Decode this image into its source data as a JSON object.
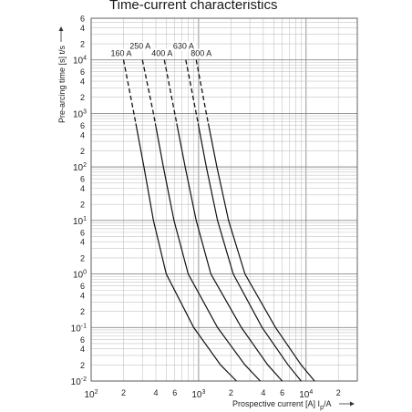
{
  "chart_data": {
    "type": "line",
    "title": "Time-current characteristics",
    "xlabel": "Prospective current [A]",
    "xlabel_symbol": "I",
    "xlabel_symbol_sub": "p",
    "xlabel_unit": "/A",
    "ylabel": "Pre-arcing time [s]",
    "ylabel_symbol": "t/s",
    "x_scale": "log",
    "y_scale": "log",
    "xlim": [
      100,
      30000
    ],
    "ylim": [
      0.01,
      60000
    ],
    "grid": true,
    "x_major_ticks": [
      {
        "value": 100,
        "base": "10",
        "exp": "2"
      },
      {
        "value": 1000,
        "base": "10",
        "exp": "3"
      },
      {
        "value": 10000,
        "base": "10",
        "exp": "4"
      }
    ],
    "x_minor_labels": [
      {
        "value": 200,
        "label": "2"
      },
      {
        "value": 400,
        "label": "4"
      },
      {
        "value": 600,
        "label": "6"
      },
      {
        "value": 2000,
        "label": "2"
      },
      {
        "value": 4000,
        "label": "4"
      },
      {
        "value": 6000,
        "label": "6"
      },
      {
        "value": 20000,
        "label": "2"
      }
    ],
    "y_major_ticks": [
      {
        "value": 0.01,
        "base": "10",
        "exp": "-2"
      },
      {
        "value": 0.1,
        "base": "10",
        "exp": "-1"
      },
      {
        "value": 1,
        "base": "10",
        "exp": "0"
      },
      {
        "value": 10,
        "base": "10",
        "exp": "1"
      },
      {
        "value": 100,
        "base": "10",
        "exp": "2"
      },
      {
        "value": 1000,
        "base": "10",
        "exp": "3"
      },
      {
        "value": 10000,
        "base": "10",
        "exp": "4"
      }
    ],
    "y_minor_labels": [
      {
        "value": 0.02,
        "label": "2"
      },
      {
        "value": 0.04,
        "label": "4"
      },
      {
        "value": 0.06,
        "label": "6"
      },
      {
        "value": 0.2,
        "label": "2"
      },
      {
        "value": 0.4,
        "label": "4"
      },
      {
        "value": 0.6,
        "label": "6"
      },
      {
        "value": 2,
        "label": "2"
      },
      {
        "value": 4,
        "label": "4"
      },
      {
        "value": 6,
        "label": "6"
      },
      {
        "value": 20,
        "label": "2"
      },
      {
        "value": 40,
        "label": "4"
      },
      {
        "value": 60,
        "label": "6"
      },
      {
        "value": 200,
        "label": "2"
      },
      {
        "value": 400,
        "label": "4"
      },
      {
        "value": 600,
        "label": "6"
      },
      {
        "value": 2000,
        "label": "2"
      },
      {
        "value": 4000,
        "label": "4"
      },
      {
        "value": 6000,
        "label": "6"
      },
      {
        "value": 20000,
        "label": "2"
      },
      {
        "value": 40000,
        "label": "4"
      },
      {
        "value": 60000,
        "label": "6"
      }
    ],
    "series": [
      {
        "name": "160 A",
        "dashed_above_time": 650,
        "points": [
          [
            200,
            10000
          ],
          [
            250,
            1000
          ],
          [
            310,
            100
          ],
          [
            380,
            10
          ],
          [
            500,
            1
          ],
          [
            900,
            0.1
          ],
          [
            1600,
            0.02
          ],
          [
            2250,
            0.01
          ]
        ]
      },
      {
        "name": "250 A",
        "dashed_above_time": 650,
        "points": [
          [
            300,
            10000
          ],
          [
            380,
            1000
          ],
          [
            470,
            100
          ],
          [
            590,
            10
          ],
          [
            800,
            1
          ],
          [
            1500,
            0.1
          ],
          [
            2700,
            0.02
          ],
          [
            3750,
            0.01
          ]
        ]
      },
      {
        "name": "400 A",
        "dashed_above_time": 650,
        "points": [
          [
            480,
            10000
          ],
          [
            600,
            1000
          ],
          [
            750,
            100
          ],
          [
            950,
            10
          ],
          [
            1300,
            1
          ],
          [
            2500,
            0.1
          ],
          [
            4400,
            0.02
          ],
          [
            6000,
            0.01
          ]
        ]
      },
      {
        "name": "630 A",
        "dashed_above_time": 650,
        "points": [
          [
            760,
            10000
          ],
          [
            950,
            1000
          ],
          [
            1180,
            100
          ],
          [
            1500,
            10
          ],
          [
            2100,
            1
          ],
          [
            3900,
            0.1
          ],
          [
            6800,
            0.02
          ],
          [
            9000,
            0.01
          ]
        ]
      },
      {
        "name": "800 A",
        "dashed_above_time": 650,
        "points": [
          [
            950,
            10000
          ],
          [
            1180,
            1000
          ],
          [
            1480,
            100
          ],
          [
            1900,
            10
          ],
          [
            2700,
            1
          ],
          [
            5200,
            0.1
          ],
          [
            9000,
            0.02
          ],
          [
            12000,
            0.01
          ]
        ]
      }
    ]
  }
}
